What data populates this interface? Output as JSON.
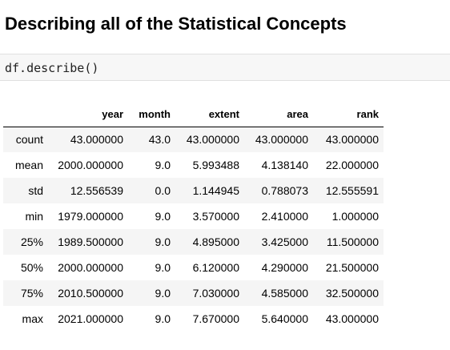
{
  "heading": "Describing all of the Statistical Concepts",
  "code_cell": "df.describe()",
  "table": {
    "columns": [
      "",
      "year",
      "month",
      "extent",
      "area",
      "rank"
    ],
    "rows": [
      {
        "index": "count",
        "values": [
          "43.000000",
          "43.0",
          "43.000000",
          "43.000000",
          "43.000000"
        ]
      },
      {
        "index": "mean",
        "values": [
          "2000.000000",
          "9.0",
          "5.993488",
          "4.138140",
          "22.000000"
        ]
      },
      {
        "index": "std",
        "values": [
          "12.556539",
          "0.0",
          "1.144945",
          "0.788073",
          "12.555591"
        ]
      },
      {
        "index": "min",
        "values": [
          "1979.000000",
          "9.0",
          "3.570000",
          "2.410000",
          "1.000000"
        ]
      },
      {
        "index": "25%",
        "values": [
          "1989.500000",
          "9.0",
          "4.895000",
          "3.425000",
          "11.500000"
        ]
      },
      {
        "index": "50%",
        "values": [
          "2000.000000",
          "9.0",
          "6.120000",
          "4.290000",
          "21.500000"
        ]
      },
      {
        "index": "75%",
        "values": [
          "2010.500000",
          "9.0",
          "7.030000",
          "4.585000",
          "32.500000"
        ]
      },
      {
        "index": "max",
        "values": [
          "2021.000000",
          "9.0",
          "7.670000",
          "5.640000",
          "43.000000"
        ]
      }
    ]
  }
}
